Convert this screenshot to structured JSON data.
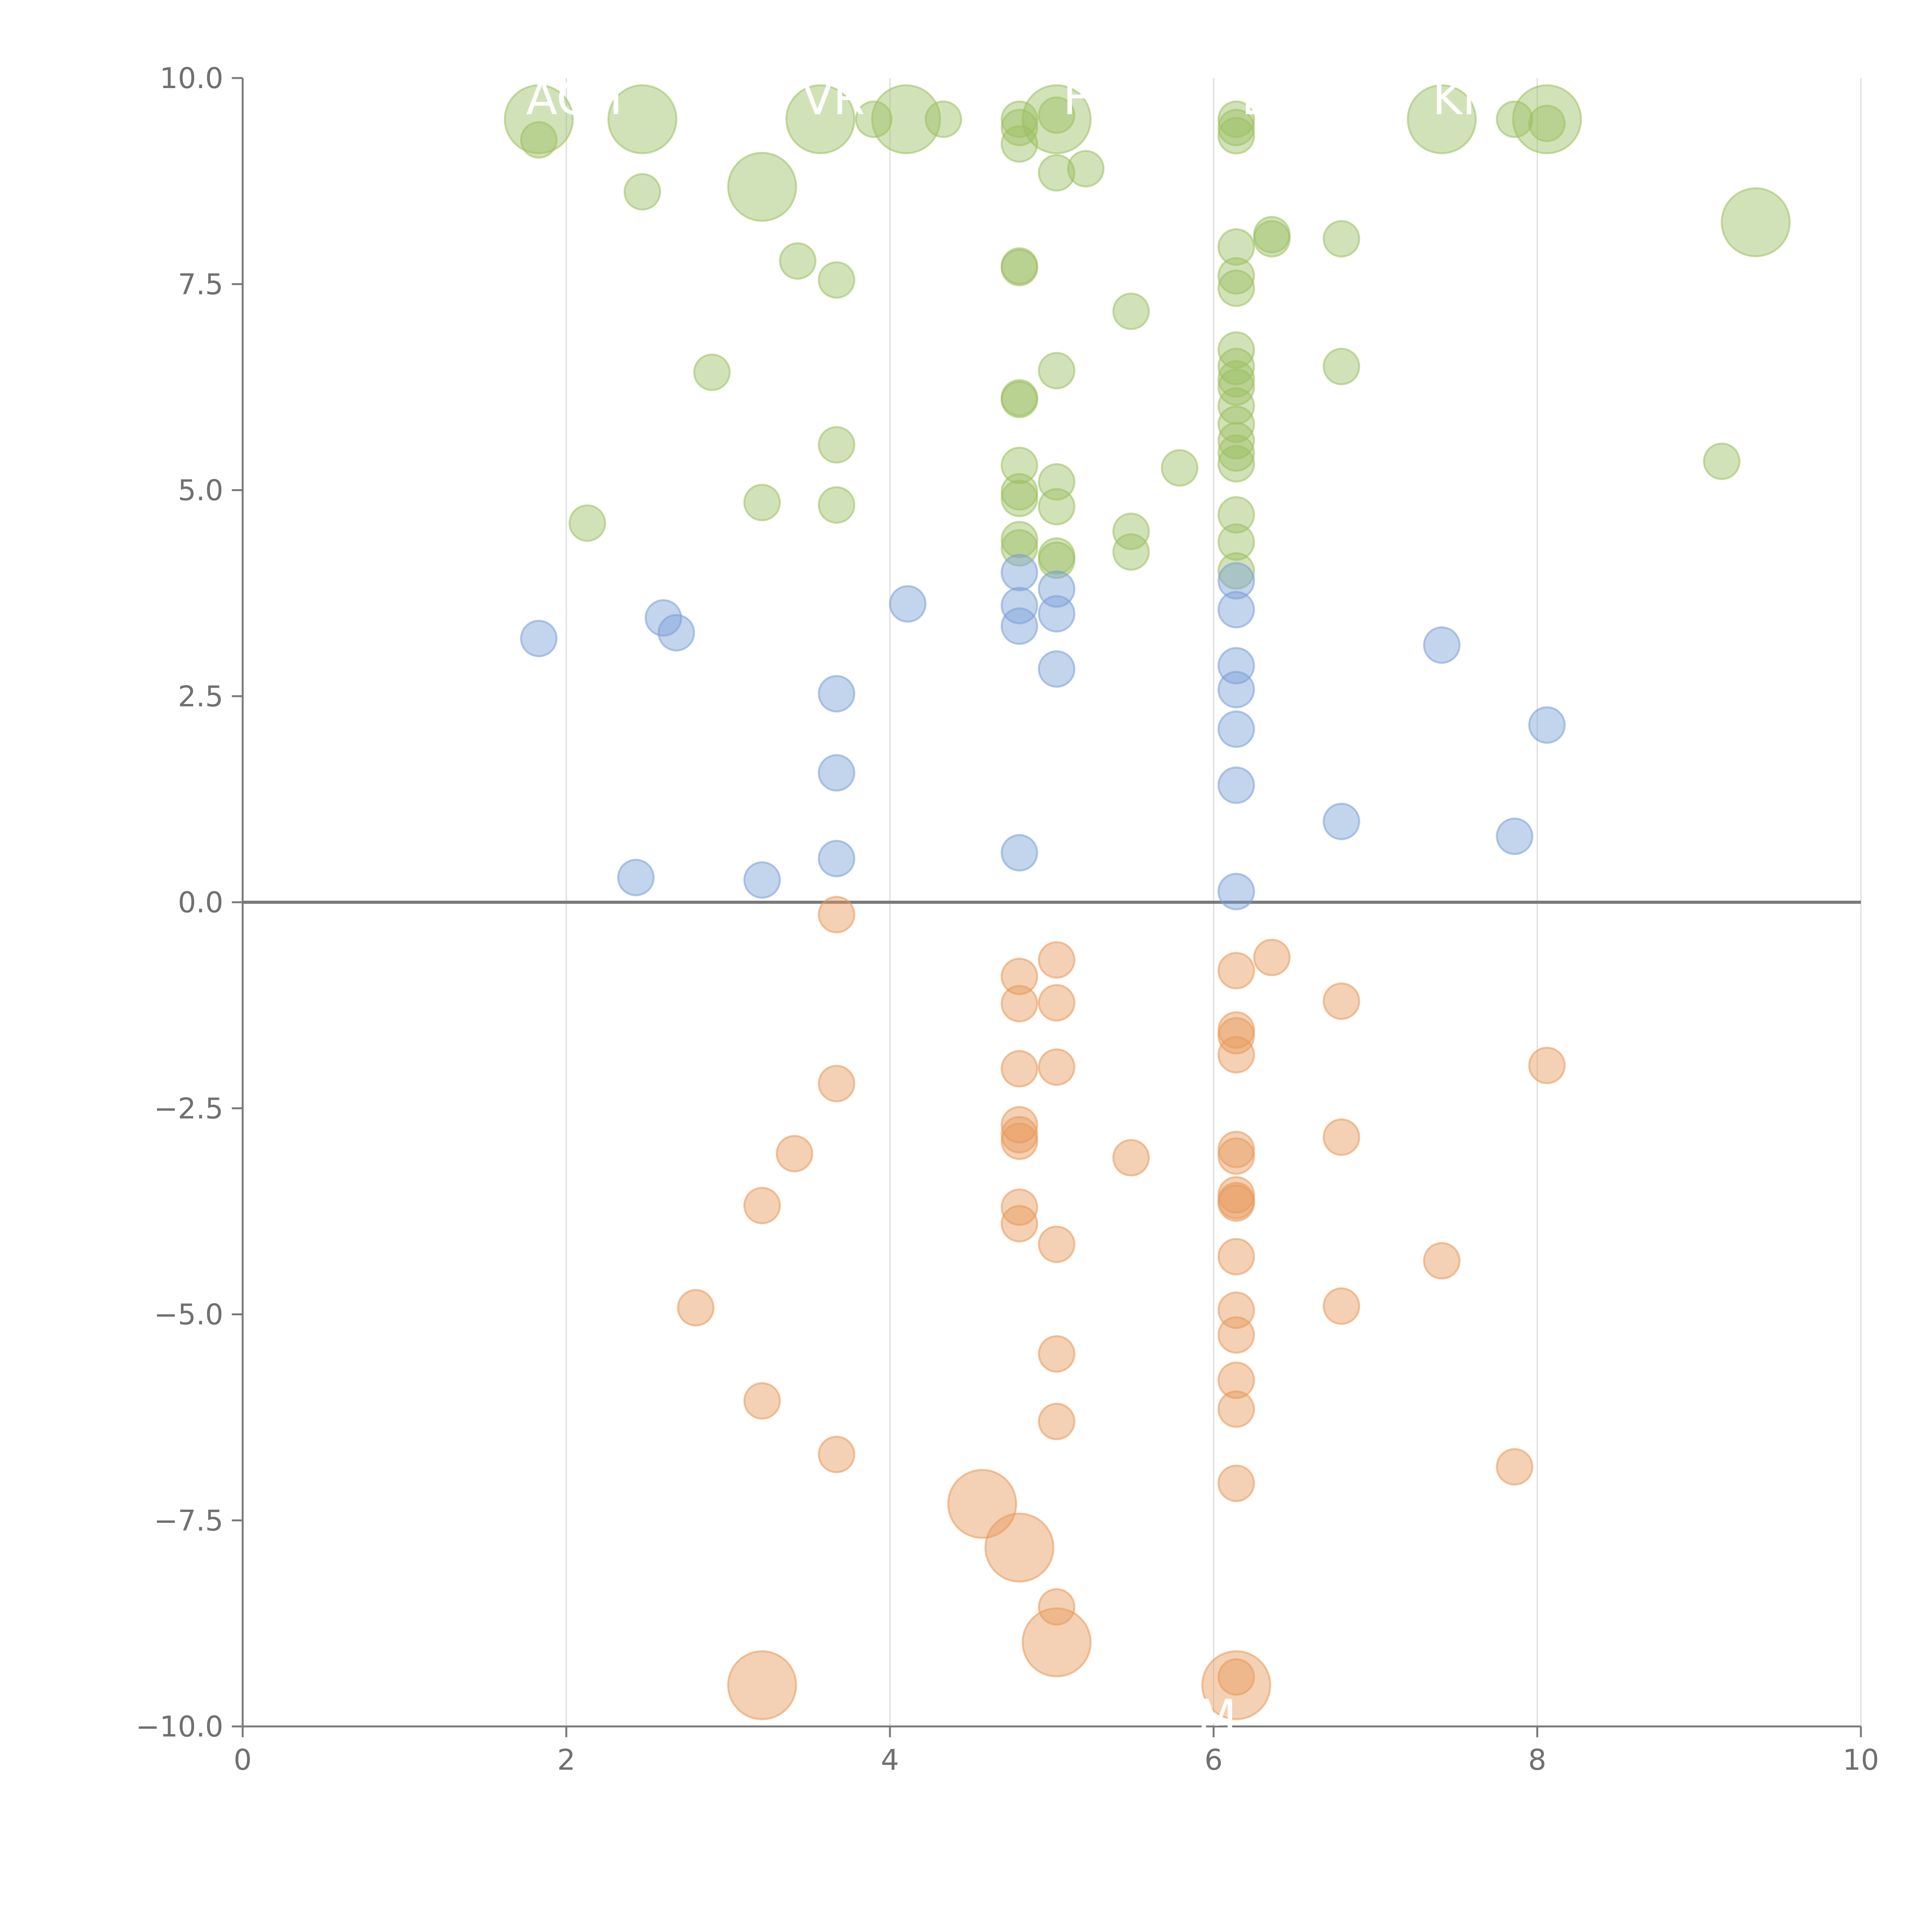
{
  "chart_data": {
    "type": "scatter",
    "title": "",
    "xlabel": "",
    "ylabel": "",
    "xlim": [
      0,
      10
    ],
    "ylim": [
      -10,
      10
    ],
    "grid": "vertical",
    "x_ticks": [
      0,
      2,
      4,
      6,
      8,
      10
    ],
    "x_tick_labels": [
      "0",
      "2",
      "4",
      "6",
      "8",
      "10"
    ],
    "y_ticks": [
      10,
      7.5,
      5,
      2.5,
      0,
      -2.5,
      -5,
      -7.5,
      -10
    ],
    "y_tick_labels": [
      "10.0",
      "7.5",
      "5.0",
      "2.5",
      "0.0",
      "−2.5",
      "−5.0",
      "−7.5",
      "−10.0"
    ],
    "zero_line": 0,
    "colors": {
      "green": "#9cbf62",
      "blue": "#7b9fd6",
      "orange": "#e7995a"
    },
    "series": [
      {
        "name": "green",
        "color": "#9cbf62",
        "points": [
          [
            1.83,
            9.5,
            2
          ],
          [
            1.83,
            9.25,
            1
          ],
          [
            2.47,
            9.5,
            2
          ],
          [
            2.47,
            8.62,
            1
          ],
          [
            3.21,
            8.68,
            2
          ],
          [
            3.57,
            9.5,
            2
          ],
          [
            4.1,
            9.5,
            2
          ],
          [
            3.9,
            9.5,
            1
          ],
          [
            4.33,
            9.5,
            1
          ],
          [
            4.8,
            9.5,
            1
          ],
          [
            4.8,
            9.4,
            1
          ],
          [
            4.8,
            9.2,
            1
          ],
          [
            5.03,
            9.5,
            2
          ],
          [
            5.03,
            8.85,
            1
          ],
          [
            5.21,
            8.9,
            1
          ],
          [
            5.03,
            9.55,
            1
          ],
          [
            6.14,
            9.5,
            1
          ],
          [
            6.14,
            9.3,
            1
          ],
          [
            6.14,
            9.4,
            1
          ],
          [
            7.41,
            9.5,
            2
          ],
          [
            7.86,
            9.5,
            1
          ],
          [
            8.06,
            9.5,
            2
          ],
          [
            8.06,
            9.45,
            1
          ],
          [
            3.43,
            7.78,
            1
          ],
          [
            3.67,
            7.55,
            1
          ],
          [
            4.8,
            7.72,
            1
          ],
          [
            4.8,
            7.7,
            1
          ],
          [
            5.49,
            7.17,
            1
          ],
          [
            6.14,
            7.95,
            1
          ],
          [
            6.14,
            7.6,
            1
          ],
          [
            6.14,
            7.45,
            1
          ],
          [
            6.36,
            8.1,
            1
          ],
          [
            6.36,
            8.05,
            1
          ],
          [
            6.79,
            8.05,
            1
          ],
          [
            9.35,
            8.25,
            2
          ],
          [
            2.9,
            6.43,
            1
          ],
          [
            4.8,
            6.1,
            1
          ],
          [
            4.8,
            6.12,
            1
          ],
          [
            5.03,
            6.45,
            1
          ],
          [
            6.14,
            6.7,
            1
          ],
          [
            6.14,
            6.5,
            1
          ],
          [
            6.14,
            6.35,
            1
          ],
          [
            6.14,
            6.25,
            1
          ],
          [
            6.14,
            6.02,
            1
          ],
          [
            6.14,
            5.8,
            1
          ],
          [
            6.14,
            5.6,
            1
          ],
          [
            6.14,
            5.45,
            1
          ],
          [
            6.14,
            5.32,
            1
          ],
          [
            6.79,
            6.5,
            1
          ],
          [
            9.14,
            5.35,
            1
          ],
          [
            3.67,
            5.55,
            1
          ],
          [
            4.8,
            5.3,
            1
          ],
          [
            5.79,
            5.27,
            1
          ],
          [
            5.03,
            5.1,
            1
          ],
          [
            2.13,
            4.6,
            1
          ],
          [
            3.21,
            4.85,
            1
          ],
          [
            3.67,
            4.82,
            1
          ],
          [
            4.8,
            4.98,
            1
          ],
          [
            4.8,
            4.9,
            1
          ],
          [
            4.8,
            4.4,
            1
          ],
          [
            4.8,
            4.3,
            1
          ],
          [
            5.03,
            4.8,
            1
          ],
          [
            5.03,
            4.2,
            1
          ],
          [
            5.03,
            4.15,
            1
          ],
          [
            5.49,
            4.5,
            1
          ],
          [
            5.49,
            4.25,
            1
          ],
          [
            6.14,
            4.7,
            1
          ],
          [
            6.14,
            4.37,
            1
          ],
          [
            6.14,
            4.02,
            1
          ]
        ]
      },
      {
        "name": "blue",
        "color": "#7b9fd6",
        "points": [
          [
            1.83,
            3.2,
            1
          ],
          [
            2.6,
            3.45,
            1
          ],
          [
            2.68,
            3.27,
            1
          ],
          [
            4.11,
            3.62,
            1
          ],
          [
            4.8,
            4.0,
            1
          ],
          [
            4.8,
            3.6,
            1
          ],
          [
            4.8,
            3.35,
            1
          ],
          [
            5.03,
            3.8,
            1
          ],
          [
            5.03,
            3.5,
            1
          ],
          [
            5.03,
            2.83,
            1
          ],
          [
            3.67,
            2.53,
            1
          ],
          [
            3.67,
            1.57,
            1
          ],
          [
            3.67,
            0.53,
            1
          ],
          [
            2.43,
            0.3,
            1
          ],
          [
            3.21,
            0.27,
            1
          ],
          [
            4.8,
            0.6,
            1
          ],
          [
            6.14,
            3.9,
            1
          ],
          [
            6.14,
            3.55,
            1
          ],
          [
            6.14,
            2.87,
            1
          ],
          [
            6.14,
            2.58,
            1
          ],
          [
            6.14,
            2.1,
            1
          ],
          [
            6.14,
            1.42,
            1
          ],
          [
            6.14,
            0.13,
            1
          ],
          [
            6.79,
            0.98,
            1
          ],
          [
            7.41,
            3.12,
            1
          ],
          [
            8.06,
            2.15,
            1
          ],
          [
            7.86,
            0.8,
            1
          ]
        ]
      },
      {
        "name": "orange",
        "color": "#e7995a",
        "points": [
          [
            3.67,
            -0.15,
            1
          ],
          [
            4.8,
            -0.9,
            1
          ],
          [
            4.8,
            -1.23,
            1
          ],
          [
            5.03,
            -0.7,
            1
          ],
          [
            5.03,
            -1.22,
            1
          ],
          [
            6.14,
            -0.83,
            1
          ],
          [
            6.36,
            -0.67,
            1
          ],
          [
            6.14,
            -1.55,
            1
          ],
          [
            6.14,
            -1.62,
            1
          ],
          [
            6.14,
            -1.85,
            1
          ],
          [
            6.79,
            -1.2,
            1
          ],
          [
            3.67,
            -2.2,
            1
          ],
          [
            4.8,
            -2.02,
            1
          ],
          [
            5.03,
            -2.0,
            1
          ],
          [
            4.8,
            -2.7,
            1
          ],
          [
            4.8,
            -2.82,
            1
          ],
          [
            4.8,
            -2.9,
            1
          ],
          [
            3.41,
            -3.05,
            1
          ],
          [
            5.49,
            -3.1,
            1
          ],
          [
            6.14,
            -3.0,
            1
          ],
          [
            6.14,
            -3.08,
            1
          ],
          [
            6.14,
            -3.55,
            1
          ],
          [
            6.14,
            -3.62,
            1
          ],
          [
            6.14,
            -3.65,
            1
          ],
          [
            6.79,
            -2.85,
            1
          ],
          [
            8.06,
            -1.98,
            1
          ],
          [
            3.21,
            -3.68,
            1
          ],
          [
            4.8,
            -3.7,
            1
          ],
          [
            4.8,
            -3.9,
            1
          ],
          [
            5.03,
            -4.15,
            1
          ],
          [
            6.14,
            -4.3,
            1
          ],
          [
            7.41,
            -4.35,
            1
          ],
          [
            2.8,
            -4.92,
            1
          ],
          [
            6.14,
            -4.95,
            1
          ],
          [
            6.14,
            -5.25,
            1
          ],
          [
            6.79,
            -4.9,
            1
          ],
          [
            5.03,
            -5.48,
            1
          ],
          [
            6.14,
            -5.8,
            1
          ],
          [
            6.14,
            -6.15,
            1
          ],
          [
            3.21,
            -6.05,
            1
          ],
          [
            5.03,
            -6.3,
            1
          ],
          [
            3.67,
            -6.7,
            1
          ],
          [
            6.14,
            -7.05,
            1
          ],
          [
            7.86,
            -6.85,
            1
          ],
          [
            4.57,
            -7.3,
            2
          ],
          [
            4.8,
            -7.83,
            2
          ],
          [
            5.03,
            -8.55,
            1
          ],
          [
            5.03,
            -8.98,
            2
          ],
          [
            3.21,
            -9.5,
            2
          ],
          [
            6.14,
            -9.5,
            2
          ],
          [
            6.14,
            -9.4,
            1
          ]
        ]
      }
    ],
    "annotations": [
      {
        "text": "ACH",
        "x": 2.05,
        "y": 9.75,
        "color": "#ffffff"
      },
      {
        "text": "VR",
        "x": 3.65,
        "y": 9.75,
        "color": "#ffffff"
      },
      {
        "text": "F",
        "x": 5.15,
        "y": 9.75,
        "color": "#ffffff"
      },
      {
        "text": "L",
        "x": 6.25,
        "y": 9.75,
        "color": "#ffffff"
      },
      {
        "text": "KN",
        "x": 7.55,
        "y": 9.75,
        "color": "#ffffff"
      },
      {
        "text": "M",
        "x": 6.02,
        "y": -9.88,
        "color": "#ffffff"
      }
    ]
  }
}
